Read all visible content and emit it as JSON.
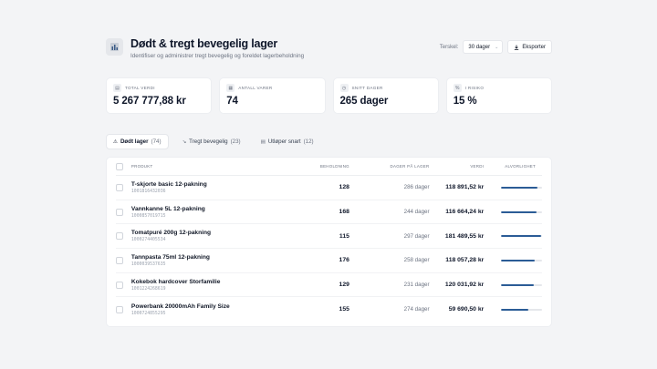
{
  "header": {
    "title": "Dødt & tregt bevegelig lager",
    "subtitle": "Identifiser og administrer tregt bevegelig og foreldet lagerbeholdning",
    "threshold_label": "Terskel:",
    "threshold_value": "30 dager",
    "export_label": "Eksporter"
  },
  "kpis": [
    {
      "label": "TOTAL VERDI",
      "value": "5 267 777,88 kr",
      "icon": "coins-icon"
    },
    {
      "label": "ANTALL VARER",
      "value": "74",
      "icon": "box-icon"
    },
    {
      "label": "SNITT DAGER",
      "value": "265 dager",
      "icon": "clock-icon"
    },
    {
      "label": "I RISIKO",
      "value": "15 %",
      "icon": "percent-icon"
    }
  ],
  "tabs": [
    {
      "label": "Dødt lager",
      "count": "(74)",
      "icon": "warning-icon",
      "active": true
    },
    {
      "label": "Tregt bevegelig",
      "count": "(23)",
      "icon": "trend-down-icon",
      "active": false
    },
    {
      "label": "Utløper snart",
      "count": "(12)",
      "icon": "calendar-icon",
      "active": false
    }
  ],
  "table": {
    "columns": {
      "product": "PRODUKT",
      "qty": "BEHOLDNING",
      "days": "DAGER PÅ LAGER",
      "value": "VERDI",
      "severity": "ALVORLIGHET"
    },
    "rows": [
      {
        "name": "T-skjorte basic 12-pakning",
        "sku": "1001816432036",
        "qty": "128",
        "days": "286 dager",
        "value": "118 891,52 kr",
        "severity": 0.88
      },
      {
        "name": "Vannkanne 5L 12-pakning",
        "sku": "1000857019715",
        "qty": "168",
        "days": "244 dager",
        "value": "116 664,24 kr",
        "severity": 0.86
      },
      {
        "name": "Tomatpuré 200g 12-pakning",
        "sku": "1000274405534",
        "qty": "115",
        "days": "297 dager",
        "value": "181 489,55 kr",
        "severity": 0.97
      },
      {
        "name": "Tannpasta 75ml 12-pakning",
        "sku": "1000039537635",
        "qty": "176",
        "days": "258 dager",
        "value": "118 057,28 kr",
        "severity": 0.83
      },
      {
        "name": "Kokebok hardcover Storfamilie",
        "sku": "1001224268619",
        "qty": "129",
        "days": "231 dager",
        "value": "120 031,92 kr",
        "severity": 0.8
      },
      {
        "name": "Powerbank 20000mAh Family Size",
        "sku": "1000724855295",
        "qty": "155",
        "days": "274 dager",
        "value": "59 690,50 kr",
        "severity": 0.67
      }
    ]
  },
  "colors": {
    "accent": "#2b5c96",
    "background": "#f3f4f6"
  }
}
